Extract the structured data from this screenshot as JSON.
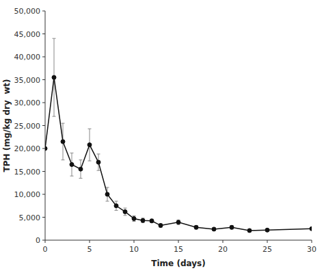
{
  "chart_data": {
    "type": "line",
    "xlabel": "Time (days)",
    "ylabel": "TPH (mg/kg dry  wt)",
    "x": [
      0,
      1,
      2,
      3,
      4,
      5,
      6,
      7,
      8,
      9,
      10,
      11,
      12,
      13,
      15,
      17,
      19,
      21,
      23,
      25,
      30
    ],
    "series": [
      {
        "color": "#111111",
        "marker": "circle",
        "values": [
          20000,
          35500,
          21500,
          16500,
          15500,
          20800,
          17000,
          10000,
          7500,
          6200,
          4700,
          4300,
          4200,
          3200,
          3900,
          2800,
          2400,
          2800,
          2100,
          2200,
          2500
        ],
        "yerr": [
          0,
          8500,
          4000,
          2500,
          2000,
          3500,
          1800,
          1500,
          1000,
          800,
          600,
          500,
          400,
          400,
          500,
          400,
          300,
          400,
          300,
          300,
          0
        ]
      }
    ],
    "xlim": [
      0,
      30
    ],
    "ylim": [
      0,
      50000
    ],
    "xticks": [
      0,
      5,
      10,
      15,
      20,
      25,
      30
    ],
    "yticks": [
      0,
      {
        "value": 5000,
        "label": "5,000"
      },
      {
        "value": 10000,
        "label": "10,000"
      },
      {
        "value": 15000,
        "label": "15,000"
      },
      {
        "value": 20000,
        "label": "20,000"
      },
      {
        "value": 25000,
        "label": "25,000"
      },
      {
        "value": 30000,
        "label": "30,000"
      },
      {
        "value": 35000,
        "label": "35,000"
      },
      {
        "value": 40000,
        "label": "40,000"
      },
      {
        "value": 45000,
        "label": "45,000"
      },
      {
        "value": 50000,
        "label": "50,000"
      }
    ],
    "grid": false
  }
}
